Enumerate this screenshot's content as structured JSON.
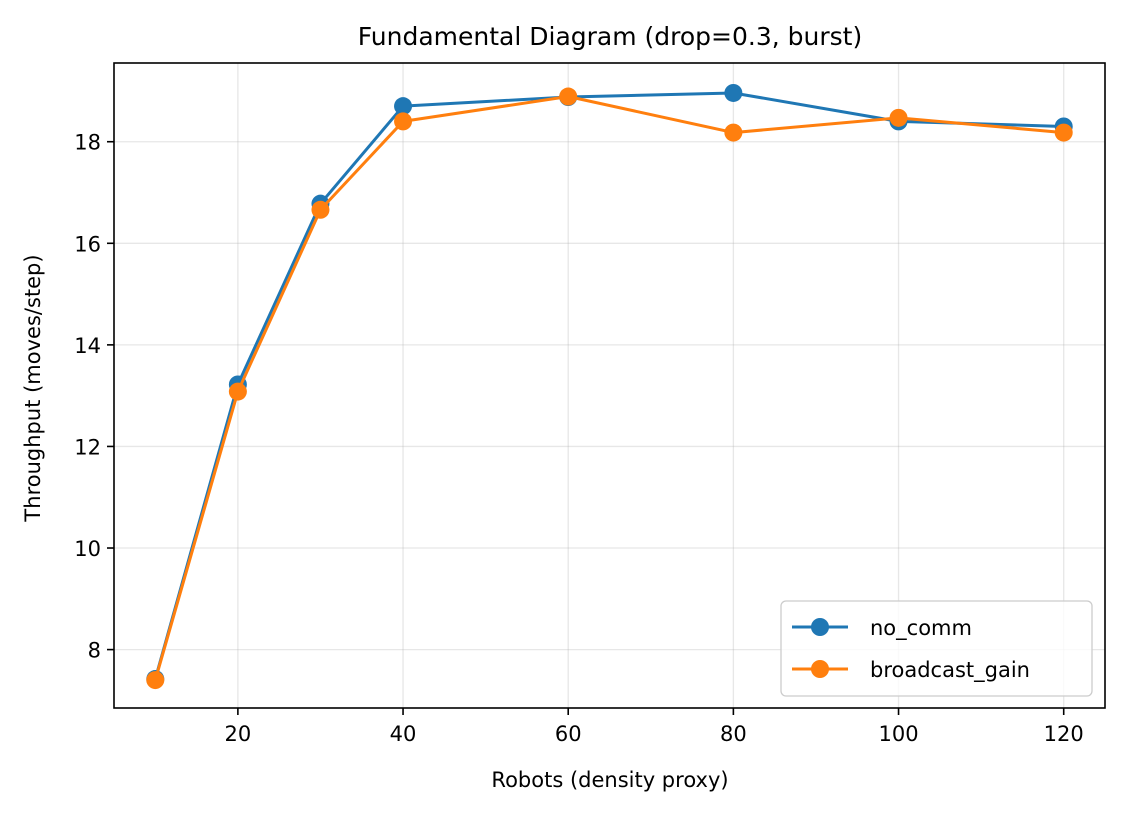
{
  "chart_data": {
    "type": "line",
    "title": "Fundamental Diagram (drop=0.3, burst)",
    "xlabel": "Robots (density proxy)",
    "ylabel": "Throughput (moves/step)",
    "xlim": [
      5,
      125
    ],
    "ylim": [
      6.85,
      19.55
    ],
    "x_ticks": [
      20,
      40,
      60,
      80,
      100,
      120
    ],
    "y_ticks": [
      8,
      10,
      12,
      14,
      16,
      18
    ],
    "grid": true,
    "legend_position": "lower-right",
    "x": [
      10,
      20,
      30,
      40,
      60,
      80,
      100,
      120
    ],
    "series": [
      {
        "name": "no_comm",
        "color": "#1f77b4",
        "values": [
          7.42,
          13.22,
          16.78,
          18.7,
          18.88,
          18.96,
          18.4,
          18.3
        ]
      },
      {
        "name": "broadcast_gain",
        "color": "#ff7f0e",
        "values": [
          7.4,
          13.08,
          16.66,
          18.4,
          18.89,
          18.18,
          18.47,
          18.18
        ]
      }
    ]
  }
}
